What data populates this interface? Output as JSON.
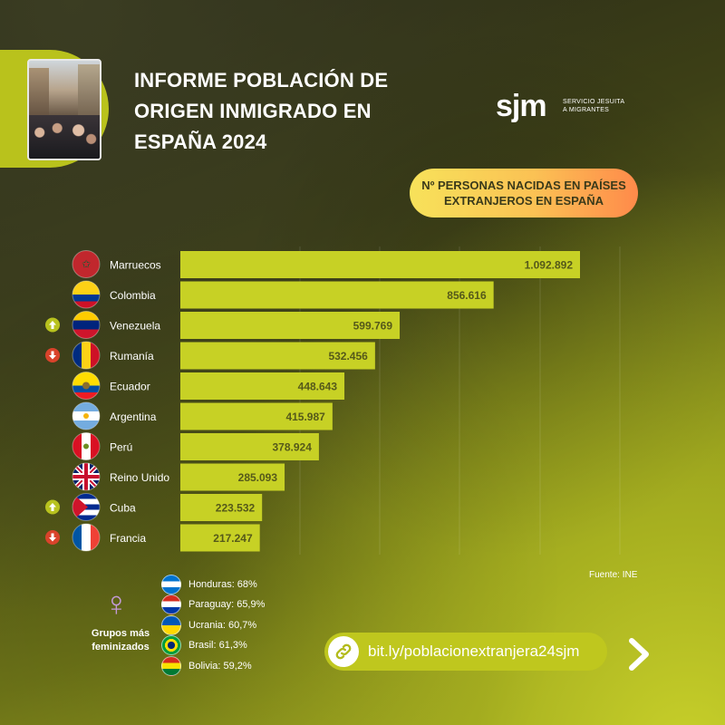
{
  "header": {
    "title": "INFORME POBLACIÓN DE ORIGEN INMIGRADO EN ESPAÑA 2024",
    "logo_text": "sjm",
    "logo_sub_line1": "SERVICIO JESUITA",
    "logo_sub_line2": "A MIGRANTES",
    "photo_icon": "street-crowd-photo"
  },
  "pill": {
    "label": "Nº PERSONAS NACIDAS EN PAÍSES\nEXTRANJEROS EN ESPAÑA"
  },
  "chart_data": {
    "type": "bar",
    "orientation": "horizontal",
    "title": "Nº PERSONAS NACIDAS EN PAÍSES EXTRANJEROS EN ESPAÑA",
    "categories": [
      "Marruecos",
      "Colombia",
      "Venezuela",
      "Rumanía",
      "Ecuador",
      "Argentina",
      "Perú",
      "Reino Unido",
      "Cuba",
      "Francia"
    ],
    "values": [
      1092892,
      856616,
      599769,
      532456,
      448643,
      415987,
      378924,
      285093,
      223532,
      217247
    ],
    "value_labels": [
      "1.092.892",
      "856.616",
      "599.769",
      "532.456",
      "448.643",
      "415.987",
      "378.924",
      "285.093",
      "223.532",
      "217.247"
    ],
    "trend": [
      "",
      "",
      "up",
      "down",
      "",
      "",
      "",
      "",
      "up",
      "down"
    ],
    "flags": [
      "morocco-flag-icon",
      "colombia-flag-icon",
      "venezuela-flag-icon",
      "romania-flag-icon",
      "ecuador-flag-icon",
      "argentina-flag-icon",
      "peru-flag-icon",
      "uk-flag-icon",
      "cuba-flag-icon",
      "france-flag-icon"
    ],
    "xlim": [
      0,
      1092892
    ],
    "grid": true,
    "bar_color": "#c7d125"
  },
  "source": "Fuente: INE",
  "feminized": {
    "label": "Grupos más feminizados",
    "icon": "venus-icon",
    "items": [
      {
        "text": "Honduras: 68%",
        "flag": "honduras-flag-icon"
      },
      {
        "text": "Paraguay: 65,9%",
        "flag": "paraguay-flag-icon"
      },
      {
        "text": "Ucrania: 60,7%",
        "flag": "ukraine-flag-icon"
      },
      {
        "text": "Brasil: 61,3%",
        "flag": "brazil-flag-icon"
      },
      {
        "text": "Bolivia: 59,2%",
        "flag": "bolivia-flag-icon"
      }
    ]
  },
  "link": {
    "text": "bit.ly/poblacionextranjera24sjm",
    "icon": "link-icon",
    "next_icon": "chevron-right-icon"
  },
  "colors": {
    "accent": "#c7d125",
    "pill_start": "#f7e25a",
    "pill_end": "#ff8a4a",
    "trend_up": "#b8c21e",
    "trend_down": "#d9432b",
    "venus": "#c39ad6"
  }
}
